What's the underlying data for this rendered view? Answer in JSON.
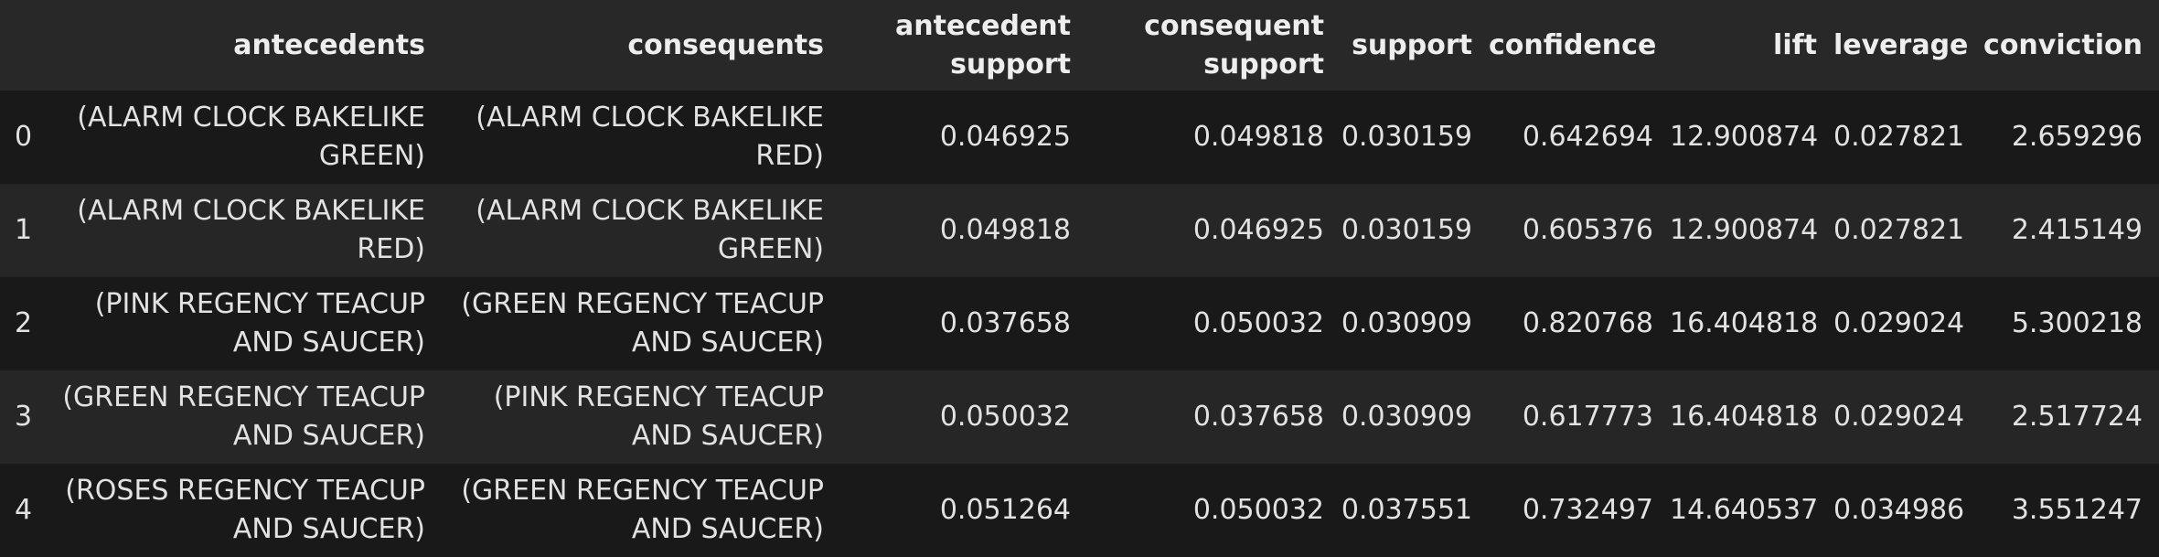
{
  "table": {
    "columns": [
      {
        "key": "antecedents",
        "label": "antecedents"
      },
      {
        "key": "consequents",
        "label": "consequents"
      },
      {
        "key": "antecedent_support",
        "label": "antecedent support"
      },
      {
        "key": "consequent_support",
        "label": "consequent support"
      },
      {
        "key": "support",
        "label": "support"
      },
      {
        "key": "confidence",
        "label": "confidence"
      },
      {
        "key": "lift",
        "label": "lift"
      },
      {
        "key": "leverage",
        "label": "leverage"
      },
      {
        "key": "conviction",
        "label": "conviction"
      }
    ],
    "rows": [
      {
        "index": "0",
        "antecedents": "(ALARM CLOCK BAKELIKE GREEN)",
        "consequents": "(ALARM CLOCK BAKELIKE RED)",
        "antecedent_support": "0.046925",
        "consequent_support": "0.049818",
        "support": "0.030159",
        "confidence": "0.642694",
        "lift": "12.900874",
        "leverage": "0.027821",
        "conviction": "2.659296"
      },
      {
        "index": "1",
        "antecedents": "(ALARM CLOCK BAKELIKE RED)",
        "consequents": "(ALARM CLOCK BAKELIKE GREEN)",
        "antecedent_support": "0.049818",
        "consequent_support": "0.046925",
        "support": "0.030159",
        "confidence": "0.605376",
        "lift": "12.900874",
        "leverage": "0.027821",
        "conviction": "2.415149"
      },
      {
        "index": "2",
        "antecedents": "(PINK REGENCY TEACUP AND SAUCER)",
        "consequents": "(GREEN REGENCY TEACUP AND SAUCER)",
        "antecedent_support": "0.037658",
        "consequent_support": "0.050032",
        "support": "0.030909",
        "confidence": "0.820768",
        "lift": "16.404818",
        "leverage": "0.029024",
        "conviction": "5.300218"
      },
      {
        "index": "3",
        "antecedents": "(GREEN REGENCY TEACUP AND SAUCER)",
        "consequents": "(PINK REGENCY TEACUP AND SAUCER)",
        "antecedent_support": "0.050032",
        "consequent_support": "0.037658",
        "support": "0.030909",
        "confidence": "0.617773",
        "lift": "16.404818",
        "leverage": "0.029024",
        "conviction": "2.517724"
      },
      {
        "index": "4",
        "antecedents": "(ROSES REGENCY TEACUP AND SAUCER)",
        "consequents": "(GREEN REGENCY TEACUP AND SAUCER)",
        "antecedent_support": "0.051264",
        "consequent_support": "0.050032",
        "support": "0.037551",
        "confidence": "0.732497",
        "lift": "14.640537",
        "leverage": "0.034986",
        "conviction": "3.551247"
      }
    ]
  },
  "colors": {
    "background": "#1e1e1e",
    "header_background": "#282828",
    "row_odd": "#191919",
    "row_even": "#262626",
    "text": "#e2e2e2"
  }
}
